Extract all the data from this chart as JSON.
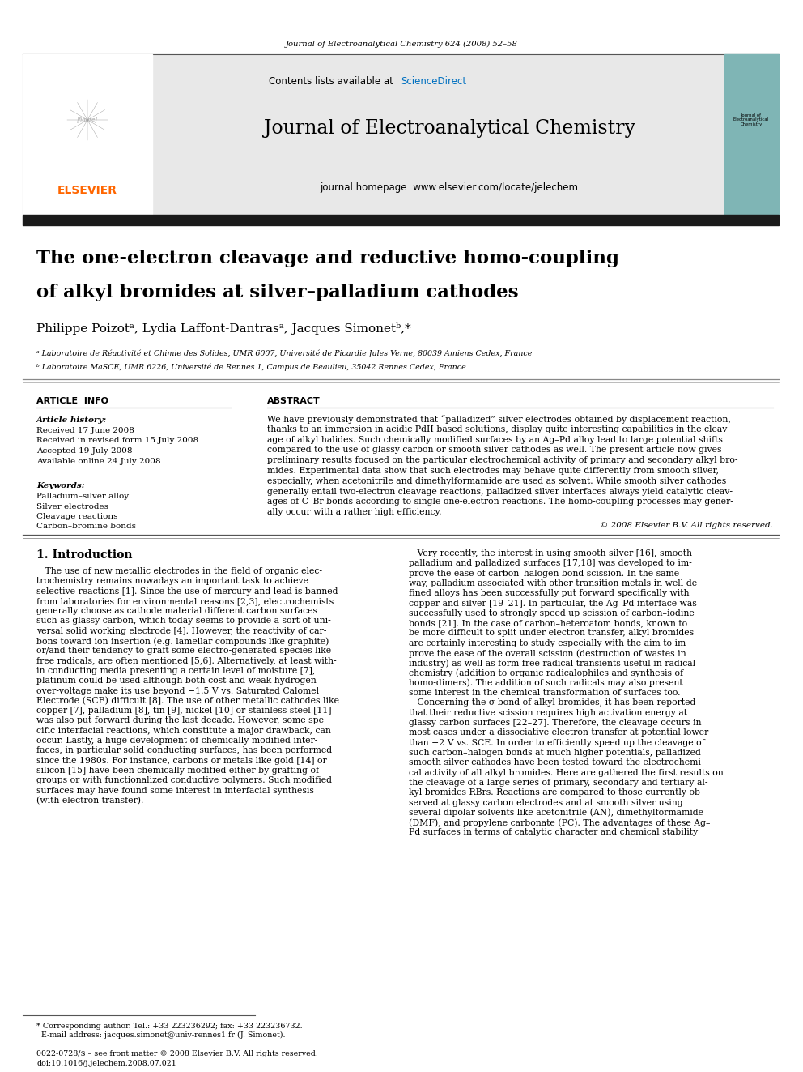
{
  "page_width": 9.92,
  "page_height": 13.23,
  "bg_color": "#ffffff",
  "journal_citation": "Journal of Electroanalytical Chemistry 624 (2008) 52–58",
  "header_bg": "#e8e8e8",
  "sciencedirect_color": "#0070c0",
  "journal_name": "Journal of Electroanalytical Chemistry",
  "journal_homepage": "journal homepage: www.elsevier.com/locate/jelechem",
  "black_bar_color": "#1a1a1a",
  "article_title_line1": "The one-electron cleavage and reductive homo-coupling",
  "article_title_line2": "of alkyl bromides at silver–palladium cathodes",
  "authors": "Philippe Poizotᵃ, Lydia Laffont-Dantrasᵃ, Jacques Simonetᵇ,*",
  "affil_a": "ᵃ Laboratoire de Réactivité et Chimie des Solides, UMR 6007, Université de Picardie Jules Verne, 80039 Amiens Cedex, France",
  "affil_b": "ᵇ Laboratoire MaSCE, UMR 6226, Université de Rennes 1, Campus de Beaulieu, 35042 Rennes Cedex, France",
  "article_info_title": "ARTICLE  INFO",
  "abstract_title": "ABSTRACT",
  "article_history_label": "Article history:",
  "received1": "Received 17 June 2008",
  "received2": "Received in revised form 15 July 2008",
  "accepted": "Accepted 19 July 2008",
  "available": "Available online 24 July 2008",
  "keywords_label": "Keywords:",
  "kw1": "Palladium–silver alloy",
  "kw2": "Silver electrodes",
  "kw3": "Cleavage reactions",
  "kw4": "Carbon–bromine bonds",
  "copyright_text": "© 2008 Elsevier B.V. All rights reserved.",
  "intro_title": "1. Introduction",
  "footnote1": "* Corresponding author. Tel.: +33 223236292; fax: +33 223236732.",
  "footnote2": "  E-mail address: jacques.simonet@univ-rennes1.fr (J. Simonet).",
  "footnote3": "0022-0728/$ – see front matter © 2008 Elsevier B.V. All rights reserved.",
  "footnote4": "doi:10.1016/j.jelechem.2008.07.021",
  "elsevier_color": "#ff6600",
  "link_color": "#0070c0",
  "abstract_lines": [
    "We have previously demonstrated that “palladized” silver electrodes obtained by displacement reaction,",
    "thanks to an immersion in acidic PdII-based solutions, display quite interesting capabilities in the cleav-",
    "age of alkyl halides. Such chemically modified surfaces by an Ag–Pd alloy lead to large potential shifts",
    "compared to the use of glassy carbon or smooth silver cathodes as well. The present article now gives",
    "preliminary results focused on the particular electrochemical activity of primary and secondary alkyl bro-",
    "mides. Experimental data show that such electrodes may behave quite differently from smooth silver,",
    "especially, when acetonitrile and dimethylformamide are used as solvent. While smooth silver cathodes",
    "generally entail two-electron cleavage reactions, palladized silver interfaces always yield catalytic cleav-",
    "ages of C–Br bonds according to single one-electron reactions. The homo-coupling processes may gener-",
    "ally occur with a rather high efficiency."
  ],
  "col1_lines": [
    "   The use of new metallic electrodes in the field of organic elec-",
    "trochemistry remains nowadays an important task to achieve",
    "selective reactions [1]. Since the use of mercury and lead is banned",
    "from laboratories for environmental reasons [2,3], electrochemists",
    "generally choose as cathode material different carbon surfaces",
    "such as glassy carbon, which today seems to provide a sort of uni-",
    "versal solid working electrode [4]. However, the reactivity of car-",
    "bons toward ion insertion (e.g. lamellar compounds like graphite)",
    "or/and their tendency to graft some electro-generated species like",
    "free radicals, are often mentioned [5,6]. Alternatively, at least with-",
    "in conducting media presenting a certain level of moisture [7],",
    "platinum could be used although both cost and weak hydrogen",
    "over-voltage make its use beyond −1.5 V vs. Saturated Calomel",
    "Electrode (SCE) difficult [8]. The use of other metallic cathodes like",
    "copper [7], palladium [8], tin [9], nickel [10] or stainless steel [11]",
    "was also put forward during the last decade. However, some spe-",
    "cific interfacial reactions, which constitute a major drawback, can",
    "occur. Lastly, a huge development of chemically modified inter-",
    "faces, in particular solid-conducting surfaces, has been performed",
    "since the 1980s. For instance, carbons or metals like gold [14] or",
    "silicon [15] have been chemically modified either by grafting of",
    "groups or with functionalized conductive polymers. Such modified",
    "surfaces may have found some interest in interfacial synthesis",
    "(with electron transfer)."
  ],
  "col2_lines": [
    "   Very recently, the interest in using smooth silver [16], smooth",
    "palladium and palladized surfaces [17,18] was developed to im-",
    "prove the ease of carbon–halogen bond scission. In the same",
    "way, palladium associated with other transition metals in well-de-",
    "fined alloys has been successfully put forward specifically with",
    "copper and silver [19–21]. In particular, the Ag–Pd interface was",
    "successfully used to strongly speed up scission of carbon–iodine",
    "bonds [21]. In the case of carbon–heteroatom bonds, known to",
    "be more difficult to split under electron transfer, alkyl bromides",
    "are certainly interesting to study especially with the aim to im-",
    "prove the ease of the overall scission (destruction of wastes in",
    "industry) as well as form free radical transients useful in radical",
    "chemistry (addition to organic radicalophiles and synthesis of",
    "homo-dimers). The addition of such radicals may also present",
    "some interest in the chemical transformation of surfaces too.",
    "   Concerning the σ bond of alkyl bromides, it has been reported",
    "that their reductive scission requires high activation energy at",
    "glassy carbon surfaces [22–27]. Therefore, the cleavage occurs in",
    "most cases under a dissociative electron transfer at potential lower",
    "than −2 V vs. SCE. In order to efficiently speed up the cleavage of",
    "such carbon–halogen bonds at much higher potentials, palladized",
    "smooth silver cathodes have been tested toward the electrochemi-",
    "cal activity of all alkyl bromides. Here are gathered the first results on",
    "the cleavage of a large series of primary, secondary and tertiary al-",
    "kyl bromides RBrs. Reactions are compared to those currently ob-",
    "served at glassy carbon electrodes and at smooth silver using",
    "several dipolar solvents like acetonitrile (AN), dimethylformamide",
    "(DMF), and propylene carbonate (PC). The advantages of these Ag–",
    "Pd surfaces in terms of catalytic character and chemical stability"
  ]
}
